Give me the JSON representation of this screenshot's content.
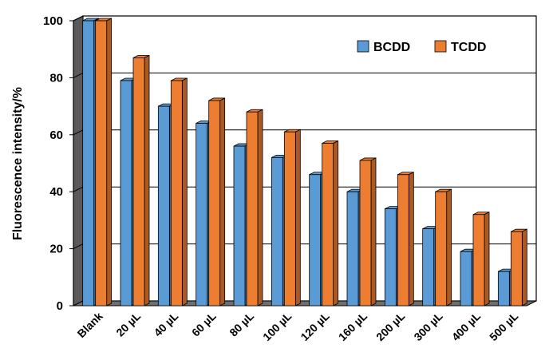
{
  "chart_data": {
    "type": "bar",
    "categories": [
      "Blank",
      "20 µL",
      "40 µL",
      "60 µL",
      "80 µL",
      "100 µL",
      "120 µL",
      "160 µL",
      "200 µL",
      "300 µL",
      "400 µL",
      "500 µL"
    ],
    "series": [
      {
        "name": "BCDD",
        "color": "#5b9bd5",
        "values": [
          100,
          79,
          70,
          64,
          56,
          52,
          46,
          40,
          34,
          27,
          19,
          12
        ]
      },
      {
        "name": "TCDD",
        "color": "#ed7d31",
        "values": [
          100,
          87,
          79,
          72,
          68,
          61,
          57,
          51,
          46,
          40,
          32,
          26
        ]
      }
    ],
    "ylabel": "Fluorescence intensity/%",
    "xlabel": "",
    "ylim": [
      0,
      100
    ],
    "yticks": [
      0,
      20,
      40,
      60,
      80,
      100
    ],
    "grid": true,
    "legend_position": "top-right"
  }
}
